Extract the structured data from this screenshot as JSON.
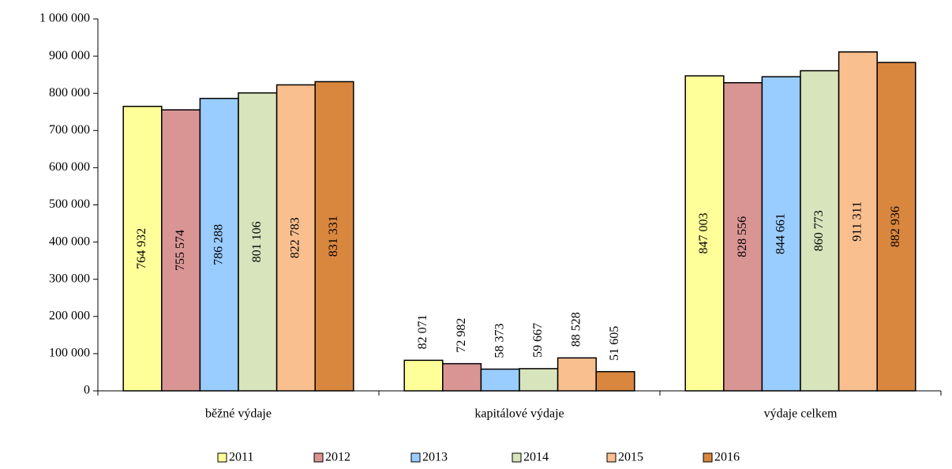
{
  "chart_data": {
    "type": "bar",
    "categories": [
      "běžné výdaje",
      "kapitálové výdaje",
      "výdaje celkem"
    ],
    "series": [
      {
        "name": "2011",
        "color": "#ffff99",
        "values": [
          764932,
          82071,
          847003
        ],
        "value_labels": [
          "764 932",
          "82 071",
          "847 003"
        ]
      },
      {
        "name": "2012",
        "color": "#d99594",
        "values": [
          755574,
          72982,
          828556
        ],
        "value_labels": [
          "755 574",
          "72 982",
          "828 556"
        ]
      },
      {
        "name": "2013",
        "color": "#99ccff",
        "values": [
          786288,
          58373,
          844661
        ],
        "value_labels": [
          "786 288",
          "58 373",
          "844 661"
        ]
      },
      {
        "name": "2014",
        "color": "#d7e4bc",
        "values": [
          801106,
          59667,
          860773
        ],
        "value_labels": [
          "801 106",
          "59 667",
          "860 773"
        ]
      },
      {
        "name": "2015",
        "color": "#fabf8f",
        "values": [
          822783,
          88528,
          911311
        ],
        "value_labels": [
          "822 783",
          "88 528",
          "911 311"
        ]
      },
      {
        "name": "2016",
        "color": "#d9863f",
        "values": [
          831331,
          51605,
          882936
        ],
        "value_labels": [
          "831 331",
          "51 605",
          "882 936"
        ]
      }
    ],
    "ylim": [
      0,
      1000000
    ],
    "yticks": [
      0,
      {
        "value": 100000,
        "label": "100 000"
      },
      {
        "value": 200000,
        "label": "200 000"
      },
      {
        "value": 300000,
        "label": "300 000"
      },
      {
        "value": 400000,
        "label": "400 000"
      },
      {
        "value": 500000,
        "label": "500 000"
      },
      {
        "value": 600000,
        "label": "600 000"
      },
      {
        "value": 700000,
        "label": "700 000"
      },
      {
        "value": 800000,
        "label": "800 000"
      },
      {
        "value": 900000,
        "label": "900 000"
      },
      {
        "value": 1000000,
        "label": "1 000 000"
      }
    ],
    "grid": false,
    "legend": "bottom"
  }
}
